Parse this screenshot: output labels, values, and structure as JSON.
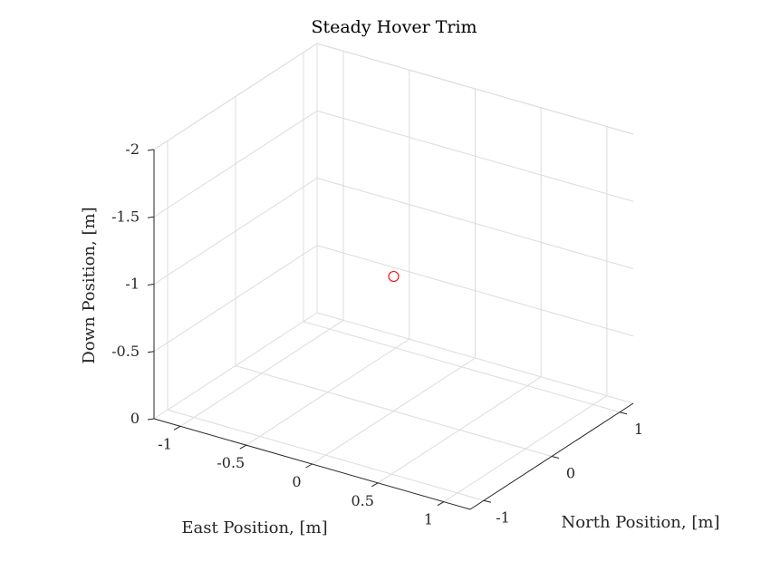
{
  "chart_data": {
    "type": "scatter",
    "title": "Steady Hover Trim",
    "xlabel": "East Position, [m]",
    "ylabel": "North Position, [m]",
    "zlabel": "Down Position, [m]",
    "x_ticks": [
      "-1",
      "-0.5",
      "0",
      "0.5",
      "1"
    ],
    "x_tick_values": [
      -1,
      -0.5,
      0,
      0.5,
      1
    ],
    "y_ticks": [
      "-1",
      "0",
      "1"
    ],
    "y_tick_values": [
      -1,
      0,
      1
    ],
    "z_ticks": [
      "0",
      "-0.5",
      "-1",
      "-1.5",
      "-2"
    ],
    "z_tick_values": [
      0,
      -0.5,
      -1,
      -1.5,
      -2
    ],
    "xlim": [
      -1.2,
      1.2
    ],
    "ylim": [
      -1.2,
      1.2
    ],
    "zlim": [
      -2,
      0
    ],
    "z_direction": "reversed",
    "grid": true,
    "points": [
      {
        "x": 0,
        "y": 0,
        "z": -1
      }
    ],
    "marker": "circle",
    "marker_color": "#ff0000"
  }
}
